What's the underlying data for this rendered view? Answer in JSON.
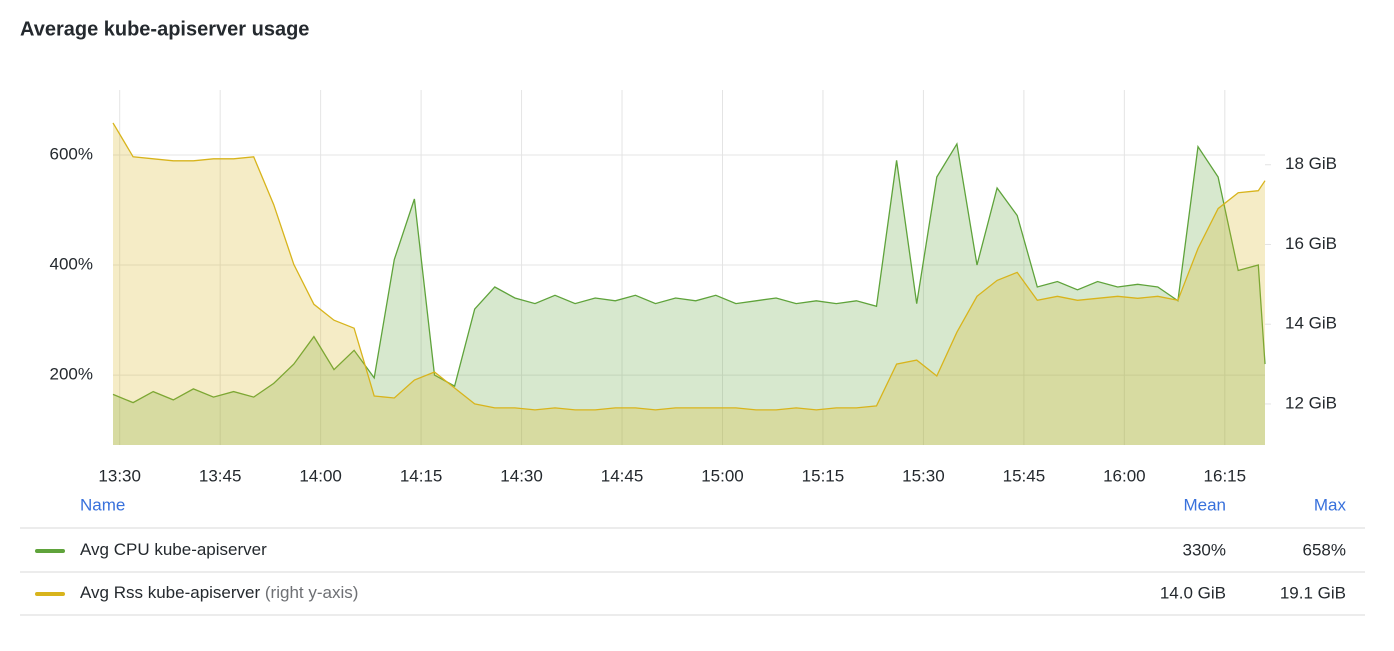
{
  "chart_data": {
    "type": "line",
    "title": "Average kube-apiserver usage",
    "x": [
      "13:29",
      "13:32",
      "13:35",
      "13:38",
      "13:41",
      "13:44",
      "13:47",
      "13:50",
      "13:53",
      "13:56",
      "13:59",
      "14:02",
      "14:05",
      "14:08",
      "14:11",
      "14:14",
      "14:17",
      "14:20",
      "14:23",
      "14:26",
      "14:29",
      "14:32",
      "14:35",
      "14:38",
      "14:41",
      "14:44",
      "14:47",
      "14:50",
      "14:53",
      "14:56",
      "14:59",
      "15:02",
      "15:05",
      "15:08",
      "15:11",
      "15:14",
      "15:17",
      "15:20",
      "15:23",
      "15:26",
      "15:29",
      "15:32",
      "15:35",
      "15:38",
      "15:41",
      "15:44",
      "15:47",
      "15:50",
      "15:53",
      "15:56",
      "15:59",
      "16:02",
      "16:05",
      "16:08",
      "16:11",
      "16:14",
      "16:17",
      "16:20",
      "16:21"
    ],
    "xlim": [
      "13:29",
      "16:21"
    ],
    "xticks": [
      "13:30",
      "13:45",
      "14:00",
      "14:15",
      "14:30",
      "14:45",
      "15:00",
      "15:15",
      "15:30",
      "15:45",
      "16:00",
      "16:15"
    ],
    "ylim": [
      73,
      718
    ],
    "yticks": [
      {
        "value": 200,
        "label": "200%"
      },
      {
        "value": 400,
        "label": "400%"
      },
      {
        "value": 600,
        "label": "600%"
      }
    ],
    "y2lim": [
      10.97,
      19.875
    ],
    "y2ticks": [
      {
        "value": 12,
        "label": "12 GiB"
      },
      {
        "value": 14,
        "label": "14 GiB"
      },
      {
        "value": 16,
        "label": "16 GiB"
      },
      {
        "value": 18,
        "label": "18 GiB"
      }
    ],
    "grid": true,
    "legend": {
      "columns": [
        "Name",
        "Mean",
        "Max"
      ]
    },
    "series": [
      {
        "name": "Avg CPU kube-apiserver",
        "color": "#5fa33b",
        "values": [
          165,
          150,
          170,
          155,
          175,
          160,
          170,
          160,
          185,
          220,
          270,
          210,
          245,
          195,
          410,
          520,
          200,
          180,
          320,
          360,
          340,
          330,
          345,
          330,
          340,
          335,
          345,
          330,
          340,
          335,
          345,
          330,
          335,
          340,
          330,
          335,
          330,
          335,
          325,
          590,
          330,
          560,
          620,
          400,
          540,
          490,
          360,
          370,
          355,
          370,
          360,
          365,
          360,
          335,
          615,
          560,
          390,
          400,
          220
        ],
        "mean": {
          "value": 330,
          "label": "330%"
        },
        "max": {
          "value": 658,
          "label": "658%"
        }
      },
      {
        "name": "Avg Rss kube-apiserver",
        "axis_note": "(right y-axis)",
        "axis": "y2",
        "color": "#d8b41c",
        "values": [
          19.05,
          18.2,
          18.15,
          18.1,
          18.1,
          18.15,
          18.15,
          18.2,
          17.0,
          15.5,
          14.5,
          14.1,
          13.9,
          12.2,
          12.15,
          12.6,
          12.8,
          12.4,
          12.0,
          11.9,
          11.9,
          11.85,
          11.9,
          11.85,
          11.85,
          11.9,
          11.9,
          11.85,
          11.9,
          11.9,
          11.9,
          11.9,
          11.85,
          11.85,
          11.9,
          11.85,
          11.9,
          11.9,
          11.95,
          13.0,
          13.1,
          12.7,
          13.8,
          14.7,
          15.1,
          15.3,
          14.6,
          14.7,
          14.6,
          14.65,
          14.7,
          14.65,
          14.7,
          14.6,
          15.9,
          16.9,
          17.3,
          17.35,
          17.6
        ],
        "mean": {
          "value": 14.0,
          "label": "14.0 GiB"
        },
        "max": {
          "value": 19.1,
          "label": "19.1 GiB"
        }
      }
    ]
  }
}
